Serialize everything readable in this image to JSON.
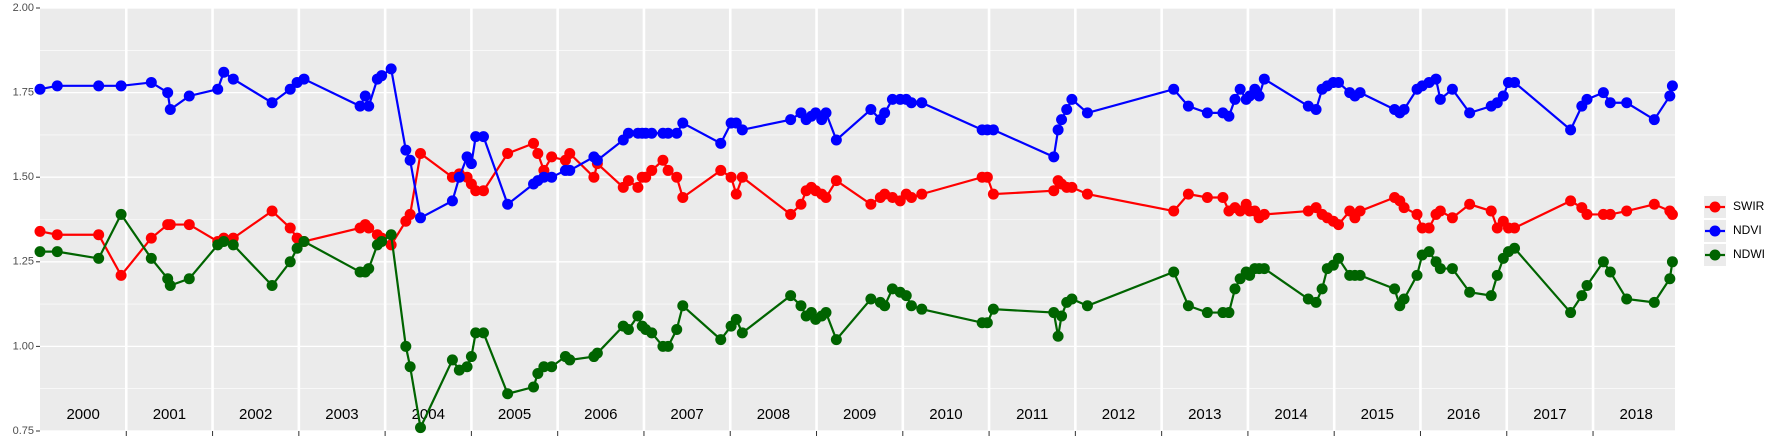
{
  "chart_data": {
    "type": "line",
    "x": [
      2000.0,
      2000.2,
      2000.68,
      2000.94,
      2001.29,
      2001.48,
      2001.51,
      2001.73,
      2002.06,
      2002.13,
      2002.24,
      2002.69,
      2002.9,
      2002.98,
      2003.06,
      2003.71,
      2003.77,
      2003.81,
      2003.91,
      2003.96,
      2004.07,
      2004.24,
      2004.29,
      2004.41,
      2004.78,
      2004.86,
      2004.95,
      2005.0,
      2005.05,
      2005.14,
      2005.42,
      2005.72,
      2005.77,
      2005.84,
      2005.93,
      2006.09,
      2006.14,
      2006.42,
      2006.46,
      2006.76,
      2006.82,
      2006.93,
      2006.98,
      2007.02,
      2007.09,
      2007.22,
      2007.28,
      2007.38,
      2007.45,
      2007.89,
      2008.01,
      2008.07,
      2008.14,
      2008.7,
      2008.82,
      2008.88,
      2008.94,
      2008.99,
      2009.06,
      2009.11,
      2009.23,
      2009.63,
      2009.74,
      2009.79,
      2009.88,
      2009.97,
      2010.04,
      2010.1,
      2010.22,
      2010.92,
      2010.98,
      2011.05,
      2011.75,
      2011.8,
      2011.84,
      2011.9,
      2011.96,
      2012.14,
      2013.14,
      2013.31,
      2013.53,
      2013.71,
      2013.78,
      2013.85,
      2013.91,
      2013.98,
      2014.02,
      2014.08,
      2014.13,
      2014.19,
      2014.7,
      2014.79,
      2014.86,
      2014.92,
      2014.99,
      2015.05,
      2015.18,
      2015.24,
      2015.3,
      2015.7,
      2015.76,
      2015.81,
      2015.96,
      2016.02,
      2016.1,
      2016.18,
      2016.23,
      2016.37,
      2016.57,
      2016.82,
      2016.89,
      2016.96,
      2017.02,
      2017.09,
      2017.74,
      2017.87,
      2017.93,
      2018.12,
      2018.2,
      2018.39,
      2018.71,
      2018.89,
      2018.92
    ],
    "series": [
      {
        "name": "SWIR",
        "color": "#ff0000",
        "values": [
          1.34,
          1.33,
          1.33,
          1.21,
          1.32,
          1.36,
          1.36,
          1.36,
          1.31,
          1.32,
          1.32,
          1.4,
          1.35,
          1.32,
          1.31,
          1.35,
          1.36,
          1.35,
          1.33,
          1.32,
          1.3,
          1.37,
          1.39,
          1.57,
          1.5,
          1.51,
          1.5,
          1.48,
          1.46,
          1.46,
          1.57,
          1.6,
          1.57,
          1.52,
          1.56,
          1.55,
          1.57,
          1.5,
          1.54,
          1.47,
          1.49,
          1.47,
          1.5,
          1.5,
          1.52,
          1.55,
          1.52,
          1.5,
          1.44,
          1.52,
          1.5,
          1.45,
          1.5,
          1.39,
          1.42,
          1.46,
          1.47,
          1.46,
          1.45,
          1.44,
          1.49,
          1.42,
          1.44,
          1.45,
          1.44,
          1.43,
          1.45,
          1.44,
          1.45,
          1.5,
          1.5,
          1.45,
          1.46,
          1.49,
          1.48,
          1.47,
          1.47,
          1.45,
          1.4,
          1.45,
          1.44,
          1.44,
          1.4,
          1.41,
          1.4,
          1.42,
          1.4,
          1.4,
          1.38,
          1.39,
          1.4,
          1.41,
          1.39,
          1.38,
          1.37,
          1.36,
          1.4,
          1.38,
          1.4,
          1.44,
          1.43,
          1.41,
          1.39,
          1.35,
          1.35,
          1.39,
          1.4,
          1.38,
          1.42,
          1.4,
          1.35,
          1.37,
          1.35,
          1.35,
          1.43,
          1.41,
          1.39,
          1.39,
          1.39,
          1.4,
          1.42,
          1.4,
          1.39
        ]
      },
      {
        "name": "NDVI",
        "color": "#0000ff",
        "values": [
          1.76,
          1.77,
          1.77,
          1.77,
          1.78,
          1.75,
          1.7,
          1.74,
          1.76,
          1.81,
          1.79,
          1.72,
          1.76,
          1.78,
          1.79,
          1.71,
          1.74,
          1.71,
          1.79,
          1.8,
          1.82,
          1.58,
          1.55,
          1.38,
          1.43,
          1.5,
          1.56,
          1.54,
          1.62,
          1.62,
          1.42,
          1.48,
          1.49,
          1.5,
          1.5,
          1.52,
          1.52,
          1.56,
          1.55,
          1.61,
          1.63,
          1.63,
          1.63,
          1.63,
          1.63,
          1.63,
          1.63,
          1.63,
          1.66,
          1.6,
          1.66,
          1.66,
          1.64,
          1.67,
          1.69,
          1.67,
          1.68,
          1.69,
          1.67,
          1.69,
          1.61,
          1.7,
          1.67,
          1.69,
          1.73,
          1.73,
          1.73,
          1.72,
          1.72,
          1.64,
          1.64,
          1.64,
          1.56,
          1.64,
          1.67,
          1.7,
          1.73,
          1.69,
          1.76,
          1.71,
          1.69,
          1.69,
          1.68,
          1.73,
          1.76,
          1.73,
          1.74,
          1.76,
          1.74,
          1.79,
          1.71,
          1.7,
          1.76,
          1.77,
          1.78,
          1.78,
          1.75,
          1.74,
          1.75,
          1.7,
          1.69,
          1.7,
          1.76,
          1.77,
          1.78,
          1.79,
          1.73,
          1.76,
          1.69,
          1.71,
          1.72,
          1.74,
          1.78,
          1.78,
          1.64,
          1.71,
          1.73,
          1.75,
          1.72,
          1.72,
          1.67,
          1.74,
          1.77
        ]
      },
      {
        "name": "NDWI",
        "color": "#006400",
        "values": [
          1.28,
          1.28,
          1.26,
          1.39,
          1.26,
          1.2,
          1.18,
          1.2,
          1.3,
          1.31,
          1.3,
          1.18,
          1.25,
          1.29,
          1.31,
          1.22,
          1.22,
          1.23,
          1.3,
          1.31,
          1.33,
          1.0,
          0.94,
          0.76,
          0.96,
          0.93,
          0.94,
          0.97,
          1.04,
          1.04,
          0.86,
          0.88,
          0.92,
          0.94,
          0.94,
          0.97,
          0.96,
          0.97,
          0.98,
          1.06,
          1.05,
          1.09,
          1.06,
          1.05,
          1.04,
          1.0,
          1.0,
          1.05,
          1.12,
          1.02,
          1.06,
          1.08,
          1.04,
          1.15,
          1.12,
          1.09,
          1.1,
          1.08,
          1.09,
          1.1,
          1.02,
          1.14,
          1.13,
          1.12,
          1.17,
          1.16,
          1.15,
          1.12,
          1.11,
          1.07,
          1.07,
          1.11,
          1.1,
          1.03,
          1.09,
          1.13,
          1.14,
          1.12,
          1.22,
          1.12,
          1.1,
          1.1,
          1.1,
          1.17,
          1.2,
          1.22,
          1.21,
          1.23,
          1.23,
          1.23,
          1.14,
          1.13,
          1.17,
          1.23,
          1.24,
          1.26,
          1.21,
          1.21,
          1.21,
          1.17,
          1.12,
          1.14,
          1.21,
          1.27,
          1.28,
          1.25,
          1.23,
          1.23,
          1.16,
          1.15,
          1.21,
          1.26,
          1.28,
          1.29,
          1.1,
          1.15,
          1.18,
          1.25,
          1.22,
          1.14,
          1.13,
          1.2,
          1.25
        ]
      }
    ],
    "xlim": [
      2000,
      2018.95
    ],
    "xticks": [
      {
        "value": 2000.5,
        "label": "2000"
      },
      {
        "value": 2001.5,
        "label": "2001"
      },
      {
        "value": 2002.5,
        "label": "2002"
      },
      {
        "value": 2003.5,
        "label": "2003"
      },
      {
        "value": 2004.5,
        "label": "2004"
      },
      {
        "value": 2005.5,
        "label": "2005"
      },
      {
        "value": 2006.5,
        "label": "2006"
      },
      {
        "value": 2007.5,
        "label": "2007"
      },
      {
        "value": 2008.5,
        "label": "2008"
      },
      {
        "value": 2009.5,
        "label": "2009"
      },
      {
        "value": 2010.5,
        "label": "2010"
      },
      {
        "value": 2011.5,
        "label": "2011"
      },
      {
        "value": 2012.5,
        "label": "2012"
      },
      {
        "value": 2013.5,
        "label": "2013"
      },
      {
        "value": 2014.5,
        "label": "2014"
      },
      {
        "value": 2015.5,
        "label": "2015"
      },
      {
        "value": 2016.5,
        "label": "2016"
      },
      {
        "value": 2017.5,
        "label": "2017"
      },
      {
        "value": 2018.5,
        "label": "2018"
      }
    ],
    "year_breaks": [
      2001,
      2002,
      2003,
      2004,
      2005,
      2006,
      2007,
      2008,
      2009,
      2010,
      2011,
      2012,
      2013,
      2014,
      2015,
      2016,
      2017,
      2018
    ],
    "ylim": [
      0.75,
      2.0
    ],
    "yticks": [
      {
        "value": 0.75,
        "label": "0.75"
      },
      {
        "value": 1,
        "label": "1.00"
      },
      {
        "value": 1.25,
        "label": "1.25"
      },
      {
        "value": 1.5,
        "label": "1.50"
      },
      {
        "value": 1.75,
        "label": "1.75"
      },
      {
        "value": 2,
        "label": "2.00"
      }
    ],
    "grid": true,
    "legend": "right"
  }
}
